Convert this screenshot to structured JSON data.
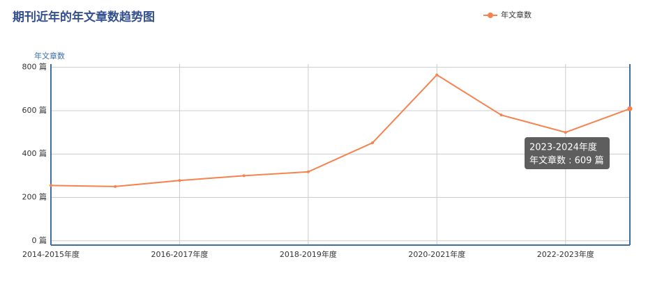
{
  "chart_data": {
    "type": "line",
    "title": "期刊近年的年文章数趋势图",
    "y_axis_label": "年文章数",
    "categories": [
      "2014-2015年度",
      null,
      "2016-2017年度",
      null,
      "2018-2019年度",
      null,
      "2020-2021年度",
      null,
      "2022-2023年度",
      null
    ],
    "series": [
      {
        "name": "年文章数",
        "color": "#f5834f",
        "values": [
          255,
          250,
          278,
          300,
          318,
          452,
          765,
          580,
          500,
          609
        ]
      }
    ],
    "ylim": [
      -20,
      815
    ],
    "yticks": [
      {
        "value": 0,
        "label": "0 篇"
      },
      {
        "value": 200,
        "label": "200 篇"
      },
      {
        "value": 400,
        "label": "400 篇"
      },
      {
        "value": 600,
        "label": "600 篇"
      },
      {
        "value": 800,
        "label": "800 篇"
      }
    ],
    "grid": true,
    "legend": "top-right",
    "tooltip": {
      "title": "2023-2024年度",
      "text": "年文章数 : 609 篇"
    }
  }
}
